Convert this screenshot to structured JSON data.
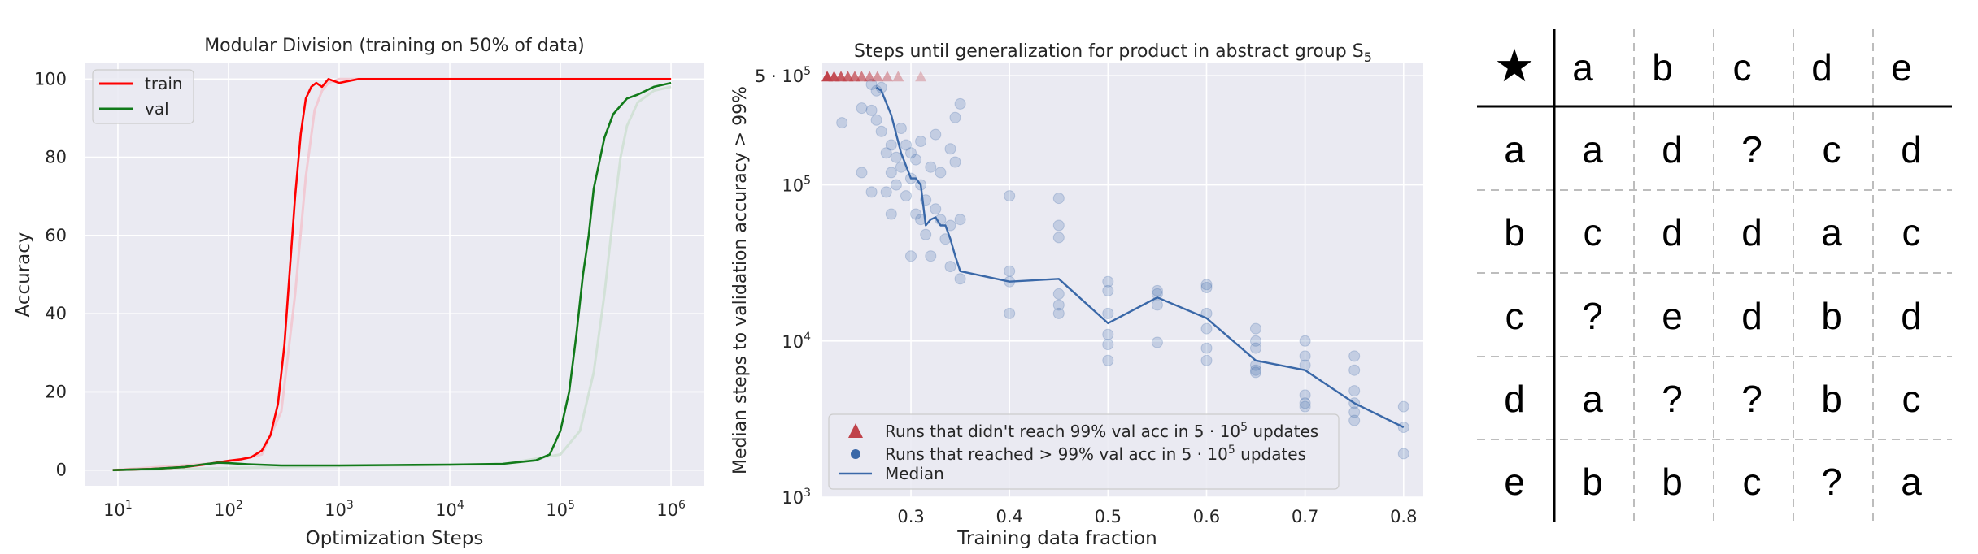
{
  "chart_data": [
    {
      "type": "line",
      "title": "Modular Division (training on 50% of data)",
      "xlabel": "Optimization Steps",
      "ylabel": "Accuracy",
      "xscale": "log",
      "xlim": [
        5,
        2000000
      ],
      "ylim": [
        -4,
        104
      ],
      "xticks": [
        10,
        100,
        1000,
        10000,
        100000,
        1000000
      ],
      "xtick_labels": [
        {
          "base": "10",
          "exp": "1"
        },
        {
          "base": "10",
          "exp": "2"
        },
        {
          "base": "10",
          "exp": "3"
        },
        {
          "base": "10",
          "exp": "4"
        },
        {
          "base": "10",
          "exp": "5"
        },
        {
          "base": "10",
          "exp": "6"
        }
      ],
      "yticks": [
        0,
        20,
        40,
        60,
        80,
        100
      ],
      "ytick_labels": [
        "0",
        "20",
        "40",
        "60",
        "80",
        "100"
      ],
      "grid": true,
      "legend": "upper-left",
      "background": "#eaeaf2",
      "series": [
        {
          "name": "train",
          "color": "#ff0000",
          "x": [
            9,
            20,
            40,
            60,
            80,
            100,
            130,
            160,
            200,
            240,
            280,
            320,
            360,
            400,
            450,
            500,
            560,
            620,
            700,
            800,
            1000,
            1500,
            3000,
            10000,
            100000,
            1000000
          ],
          "y": [
            0,
            0.3,
            0.8,
            1.4,
            2.0,
            2.4,
            2.8,
            3.3,
            5,
            9,
            17,
            32,
            52,
            70,
            86,
            95,
            98,
            99,
            98,
            100,
            99,
            100,
            100,
            100,
            100,
            100
          ]
        },
        {
          "name": "val",
          "color": "#117a1a",
          "x": [
            9,
            20,
            40,
            60,
            80,
            100,
            150,
            300,
            1000,
            3000,
            10000,
            30000,
            60000,
            80000,
            100000,
            120000,
            140000,
            160000,
            180000,
            200000,
            250000,
            300000,
            400000,
            500000,
            700000,
            1000000
          ],
          "y": [
            0,
            0.3,
            0.8,
            1.5,
            1.9,
            1.8,
            1.5,
            1.2,
            1.2,
            1.3,
            1.4,
            1.6,
            2.5,
            4,
            10,
            20,
            35,
            50,
            60,
            72,
            85,
            91,
            95,
            96,
            98,
            99
          ]
        }
      ],
      "faint_runs": [
        {
          "color": "#f2c6d0",
          "x": [
            9,
            100,
            200,
            300,
            400,
            500,
            600,
            700,
            800,
            1000,
            1000000
          ],
          "y": [
            0,
            2,
            4,
            15,
            45,
            75,
            92,
            97,
            99,
            100,
            100
          ]
        },
        {
          "color": "#cfe0d4",
          "x": [
            9,
            1000,
            30000,
            100000,
            150000,
            200000,
            250000,
            300000,
            350000,
            400000,
            500000,
            700000,
            1000000
          ],
          "y": [
            0,
            1,
            1.5,
            4,
            10,
            25,
            45,
            65,
            80,
            88,
            94,
            97,
            98
          ]
        }
      ]
    },
    {
      "type": "scatter",
      "title": "Steps until generalization for product in abstract group S",
      "title_subscript": "5",
      "xlabel": "Training data fraction",
      "ylabel": "Median steps to validation accuracy > 99%",
      "xscale": "linear",
      "yscale": "log",
      "xlim": [
        0.21,
        0.82
      ],
      "ylim": [
        1000,
        600000
      ],
      "xticks": [
        0.3,
        0.4,
        0.5,
        0.6,
        0.7,
        0.8
      ],
      "xtick_labels": [
        "0.3",
        "0.4",
        "0.5",
        "0.6",
        "0.7",
        "0.8"
      ],
      "yticks": [
        {
          "value": 1000,
          "base": "10",
          "exp": "3"
        },
        {
          "value": 10000,
          "base": "10",
          "exp": "4"
        },
        {
          "value": 100000,
          "base": "10",
          "exp": "5"
        },
        {
          "value": 500000,
          "mant": "5 · ",
          "base": "10",
          "exp": "5"
        }
      ],
      "grid": true,
      "legend": "lower-left",
      "background": "#eaeaf2",
      "colors": {
        "failed": "#c0424a",
        "reached": "#3a68a8",
        "median": "#3a68a8"
      },
      "legend_entries": [
        {
          "kind": "failed",
          "text": "Runs that didn't reach 99% val acc in 5 · 10",
          "exp": "5",
          "tail": " updates"
        },
        {
          "kind": "reached",
          "text": "Runs that reached > 99% val acc in 5 · 10",
          "exp": "5",
          "tail": " updates"
        },
        {
          "kind": "median",
          "text": "Median"
        }
      ],
      "failed_runs": [
        {
          "x": 0.215,
          "y": 500000
        },
        {
          "x": 0.222,
          "y": 500000
        },
        {
          "x": 0.229,
          "y": 500000
        },
        {
          "x": 0.236,
          "y": 500000
        },
        {
          "x": 0.243,
          "y": 500000
        },
        {
          "x": 0.25,
          "y": 500000
        },
        {
          "x": 0.258,
          "y": 500000
        },
        {
          "x": 0.266,
          "y": 500000
        },
        {
          "x": 0.276,
          "y": 500000
        },
        {
          "x": 0.287,
          "y": 500000
        },
        {
          "x": 0.31,
          "y": 500000
        }
      ],
      "reached_runs": [
        {
          "x": 0.23,
          "y": 250000
        },
        {
          "x": 0.25,
          "y": 310000
        },
        {
          "x": 0.25,
          "y": 120000
        },
        {
          "x": 0.26,
          "y": 440000
        },
        {
          "x": 0.26,
          "y": 300000
        },
        {
          "x": 0.26,
          "y": 90000
        },
        {
          "x": 0.265,
          "y": 400000
        },
        {
          "x": 0.265,
          "y": 260000
        },
        {
          "x": 0.27,
          "y": 420000
        },
        {
          "x": 0.27,
          "y": 220000
        },
        {
          "x": 0.275,
          "y": 160000
        },
        {
          "x": 0.275,
          "y": 90000
        },
        {
          "x": 0.28,
          "y": 180000
        },
        {
          "x": 0.28,
          "y": 120000
        },
        {
          "x": 0.28,
          "y": 65000
        },
        {
          "x": 0.285,
          "y": 150000
        },
        {
          "x": 0.285,
          "y": 100000
        },
        {
          "x": 0.29,
          "y": 230000
        },
        {
          "x": 0.29,
          "y": 130000
        },
        {
          "x": 0.295,
          "y": 180000
        },
        {
          "x": 0.295,
          "y": 85000
        },
        {
          "x": 0.3,
          "y": 160000
        },
        {
          "x": 0.3,
          "y": 110000
        },
        {
          "x": 0.3,
          "y": 35000
        },
        {
          "x": 0.305,
          "y": 145000
        },
        {
          "x": 0.305,
          "y": 65000
        },
        {
          "x": 0.31,
          "y": 190000
        },
        {
          "x": 0.31,
          "y": 100000
        },
        {
          "x": 0.31,
          "y": 60000
        },
        {
          "x": 0.315,
          "y": 80000
        },
        {
          "x": 0.315,
          "y": 48000
        },
        {
          "x": 0.32,
          "y": 130000
        },
        {
          "x": 0.32,
          "y": 35000
        },
        {
          "x": 0.325,
          "y": 210000
        },
        {
          "x": 0.325,
          "y": 70000
        },
        {
          "x": 0.33,
          "y": 120000
        },
        {
          "x": 0.33,
          "y": 60000
        },
        {
          "x": 0.335,
          "y": 45000
        },
        {
          "x": 0.34,
          "y": 170000
        },
        {
          "x": 0.34,
          "y": 55000
        },
        {
          "x": 0.34,
          "y": 30000
        },
        {
          "x": 0.345,
          "y": 140000
        },
        {
          "x": 0.345,
          "y": 270000
        },
        {
          "x": 0.35,
          "y": 330000
        },
        {
          "x": 0.35,
          "y": 60000
        },
        {
          "x": 0.35,
          "y": 25000
        },
        {
          "x": 0.4,
          "y": 85000
        },
        {
          "x": 0.4,
          "y": 28000
        },
        {
          "x": 0.4,
          "y": 24000
        },
        {
          "x": 0.4,
          "y": 15000
        },
        {
          "x": 0.45,
          "y": 82000
        },
        {
          "x": 0.45,
          "y": 55000
        },
        {
          "x": 0.45,
          "y": 46000
        },
        {
          "x": 0.45,
          "y": 20000
        },
        {
          "x": 0.45,
          "y": 17000
        },
        {
          "x": 0.45,
          "y": 15000
        },
        {
          "x": 0.5,
          "y": 24000
        },
        {
          "x": 0.5,
          "y": 21000
        },
        {
          "x": 0.5,
          "y": 15000
        },
        {
          "x": 0.5,
          "y": 11000
        },
        {
          "x": 0.5,
          "y": 9500
        },
        {
          "x": 0.5,
          "y": 7500
        },
        {
          "x": 0.55,
          "y": 21000
        },
        {
          "x": 0.55,
          "y": 20000
        },
        {
          "x": 0.55,
          "y": 17000
        },
        {
          "x": 0.55,
          "y": 9800
        },
        {
          "x": 0.6,
          "y": 23000
        },
        {
          "x": 0.6,
          "y": 22000
        },
        {
          "x": 0.6,
          "y": 15000
        },
        {
          "x": 0.6,
          "y": 12000
        },
        {
          "x": 0.6,
          "y": 9000
        },
        {
          "x": 0.6,
          "y": 7500
        },
        {
          "x": 0.65,
          "y": 12000
        },
        {
          "x": 0.65,
          "y": 10000
        },
        {
          "x": 0.65,
          "y": 9000
        },
        {
          "x": 0.65,
          "y": 7000
        },
        {
          "x": 0.65,
          "y": 6500
        },
        {
          "x": 0.65,
          "y": 6300
        },
        {
          "x": 0.7,
          "y": 10000
        },
        {
          "x": 0.7,
          "y": 8000
        },
        {
          "x": 0.7,
          "y": 7000
        },
        {
          "x": 0.7,
          "y": 4500
        },
        {
          "x": 0.7,
          "y": 4000
        },
        {
          "x": 0.7,
          "y": 3800
        },
        {
          "x": 0.75,
          "y": 8000
        },
        {
          "x": 0.75,
          "y": 6500
        },
        {
          "x": 0.75,
          "y": 4800
        },
        {
          "x": 0.75,
          "y": 4000
        },
        {
          "x": 0.75,
          "y": 3500
        },
        {
          "x": 0.75,
          "y": 3100
        },
        {
          "x": 0.8,
          "y": 3800
        },
        {
          "x": 0.8,
          "y": 2800
        },
        {
          "x": 0.8,
          "y": 1900
        }
      ],
      "median": {
        "x": [
          0.265,
          0.27,
          0.28,
          0.29,
          0.3,
          0.305,
          0.31,
          0.315,
          0.32,
          0.325,
          0.33,
          0.335,
          0.34,
          0.345,
          0.35,
          0.4,
          0.45,
          0.5,
          0.55,
          0.6,
          0.65,
          0.7,
          0.75,
          0.8
        ],
        "y": [
          420000,
          400000,
          280000,
          160000,
          110000,
          110000,
          100000,
          55000,
          60000,
          62000,
          55000,
          55000,
          45000,
          35000,
          28000,
          24000,
          25000,
          13000,
          19000,
          14000,
          7500,
          6500,
          4000,
          2800
        ]
      }
    },
    {
      "type": "table",
      "corner": "★",
      "column_headers": [
        "a",
        "b",
        "c",
        "d",
        "e"
      ],
      "rows": [
        {
          "header": "a",
          "cells": [
            "a",
            "d",
            "?",
            "c",
            "d"
          ]
        },
        {
          "header": "b",
          "cells": [
            "c",
            "d",
            "d",
            "a",
            "c"
          ]
        },
        {
          "header": "c",
          "cells": [
            "?",
            "e",
            "d",
            "b",
            "d"
          ]
        },
        {
          "header": "d",
          "cells": [
            "a",
            "?",
            "?",
            "b",
            "c"
          ]
        },
        {
          "header": "e",
          "cells": [
            "b",
            "b",
            "c",
            "?",
            "a"
          ]
        }
      ]
    }
  ]
}
